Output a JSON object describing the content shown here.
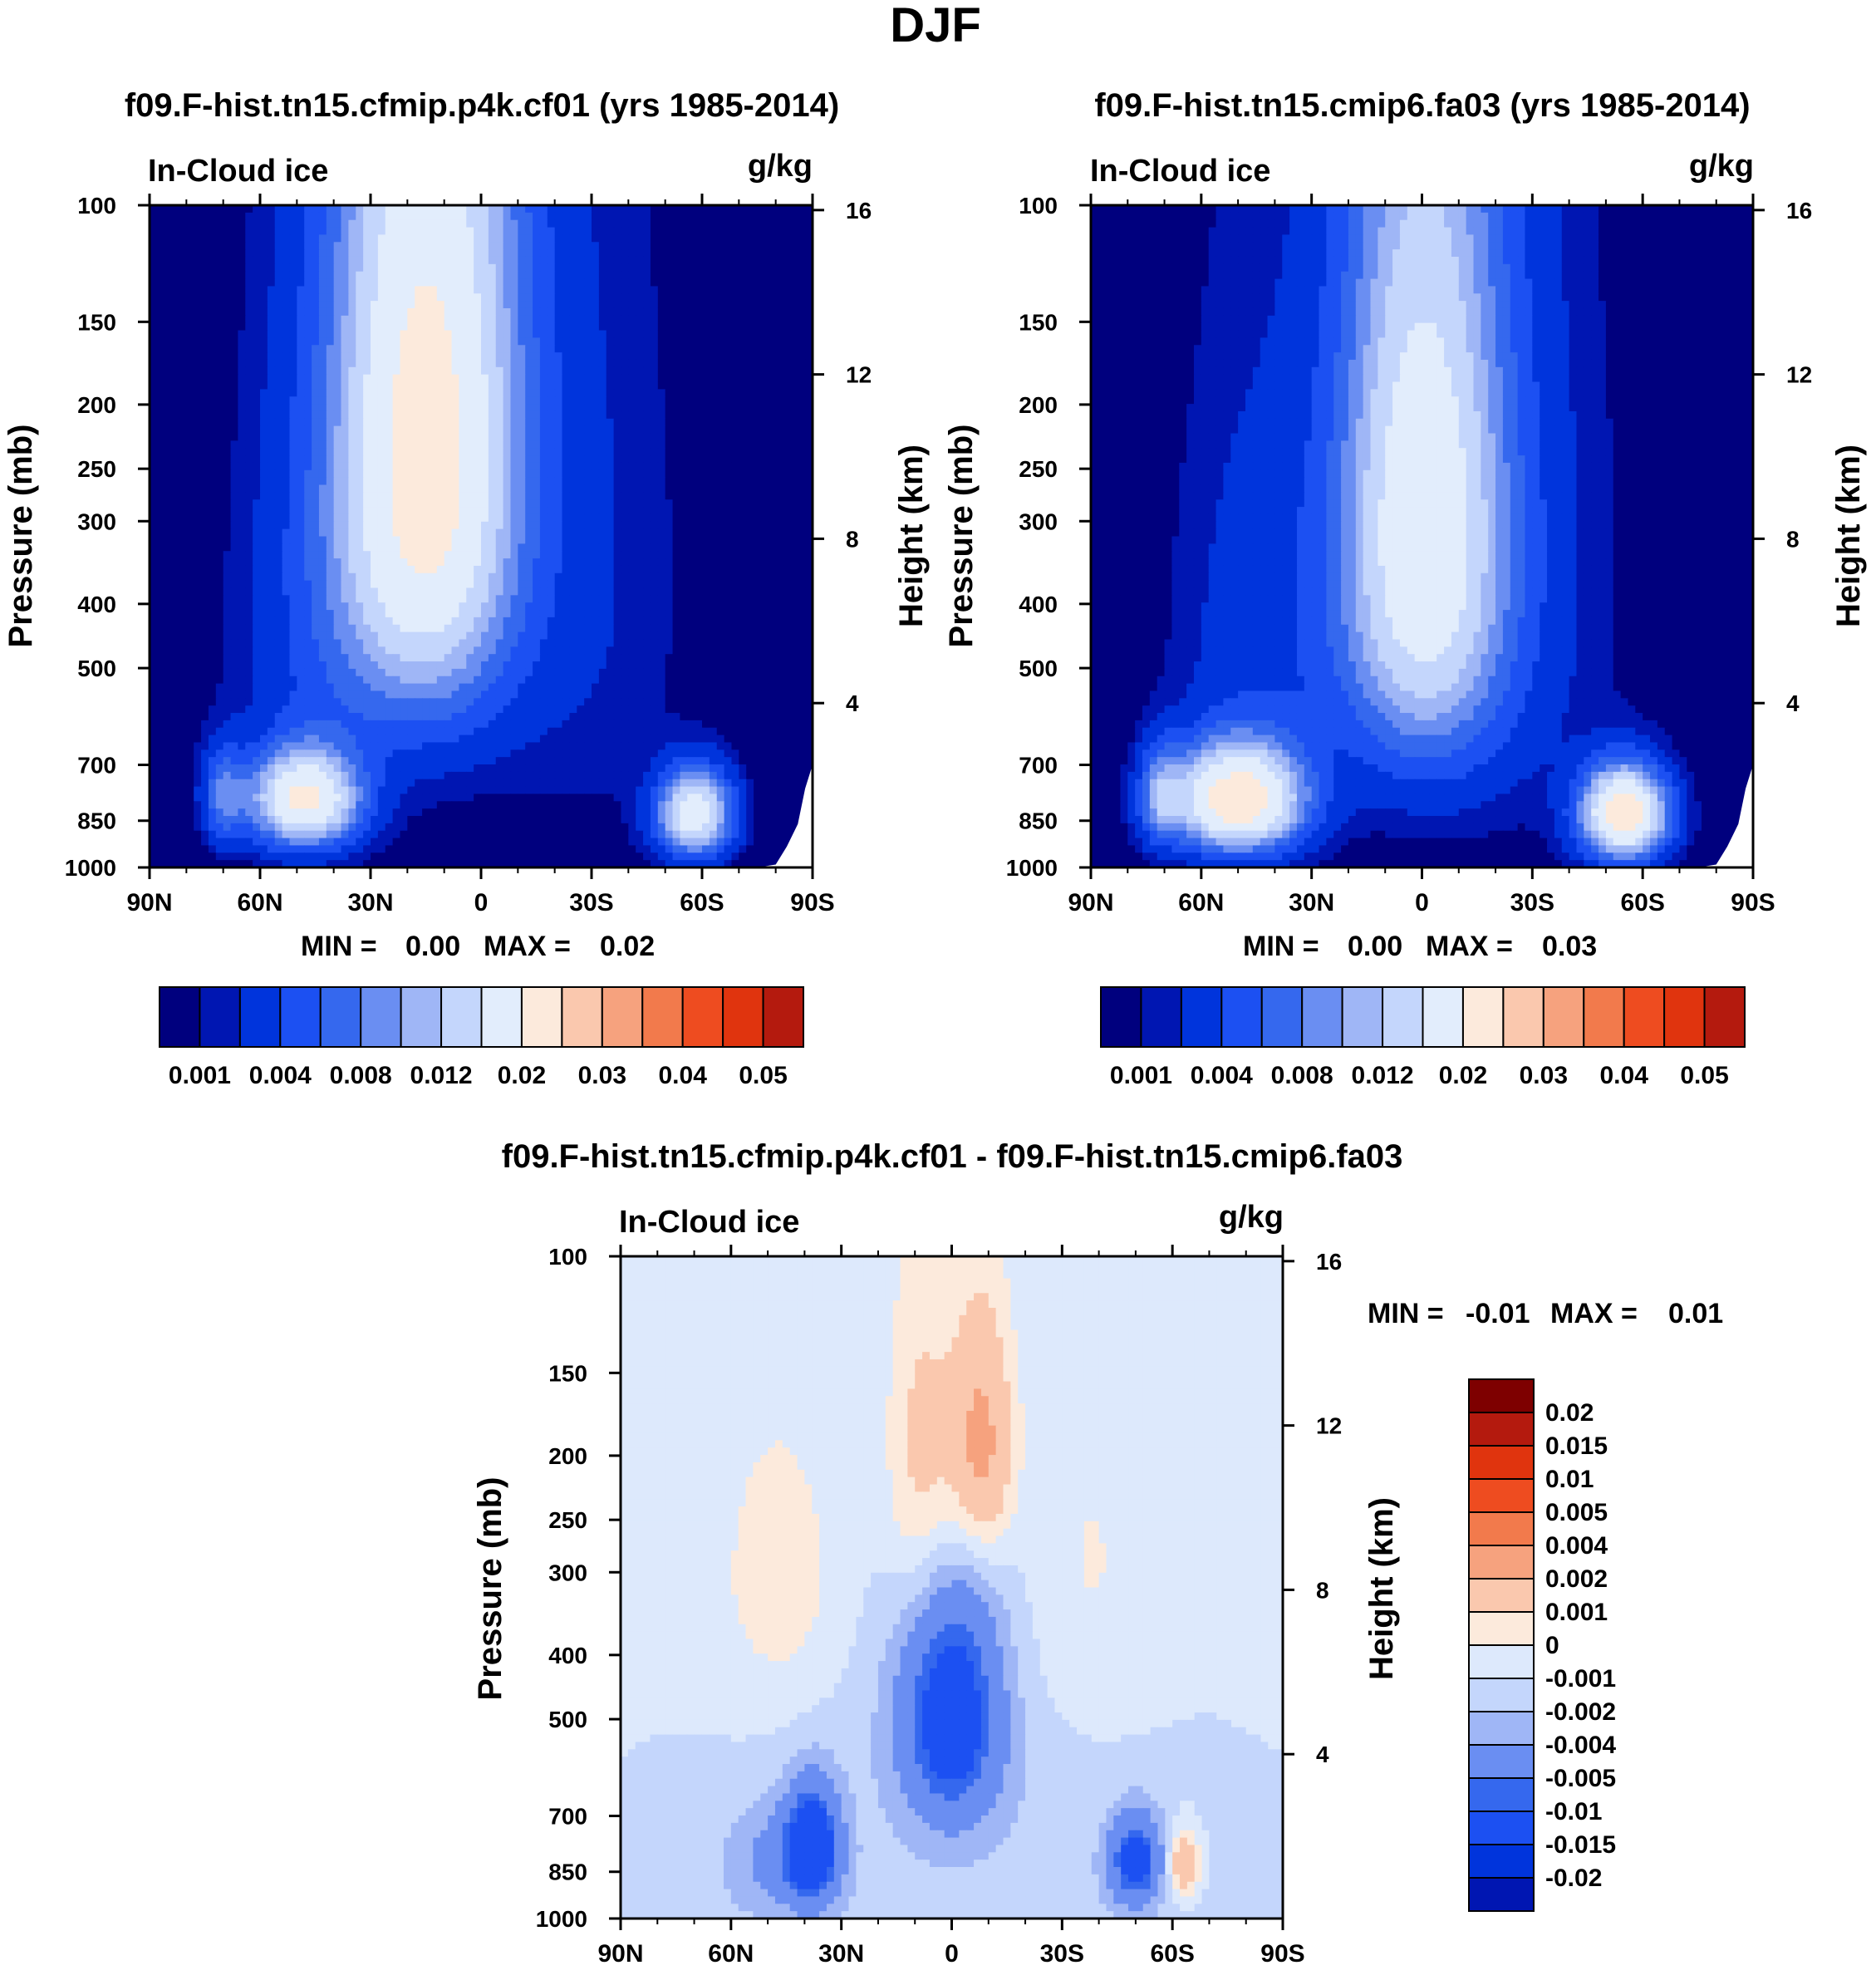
{
  "page": {
    "title": "DJF"
  },
  "colors": {
    "seq": [
      "#00007e",
      "#0016b2",
      "#0034dc",
      "#1c50f2",
      "#3568ee",
      "#6a8ef2",
      "#9fb6f6",
      "#c4d6fc",
      "#e2edfc",
      "#fceadc",
      "#fac8ae",
      "#f6a27e",
      "#f27a4c",
      "#ee4c20",
      "#e0340e",
      "#b41a0e",
      "#7e0000"
    ],
    "diff": [
      "#00007e",
      "#0016b2",
      "#0034dc",
      "#1c50f2",
      "#3568ee",
      "#6a8ef2",
      "#9fb6f6",
      "#c4d6fc",
      "#dde9fc",
      "#fceadc",
      "#fac8ae",
      "#f6a27e",
      "#f27a4c",
      "#ee4c20",
      "#e0340e",
      "#b41a0e",
      "#7e0000"
    ]
  },
  "chart_data": [
    {
      "id": "panel1",
      "type": "heatmap",
      "title": "f09.F-hist.tn15.cfmip.p4k.cf01 (yrs 1985-2014)",
      "variable": "In-Cloud ice",
      "units": "g/kg",
      "ylabel": "Pressure (mb)",
      "ylabel_right": "Height (km)",
      "x_ticks": [
        "90N",
        "60N",
        "30N",
        "0",
        "30S",
        "60S",
        "90S"
      ],
      "y_ticks": [
        "100",
        "150",
        "200",
        "250",
        "300",
        "400",
        "500",
        "700",
        "850",
        "1000"
      ],
      "y_ticks_right": [
        "16",
        "12",
        "8",
        "4"
      ],
      "stats": {
        "min_label": "MIN =",
        "min": "0.00",
        "max_label": "MAX =",
        "max": "0.02"
      },
      "colorbar_labels": [
        "0.001",
        "0.004",
        "0.008",
        "0.012",
        "0.02",
        "0.03",
        "0.04",
        "0.05"
      ],
      "features": [
        {
          "lat": 15,
          "p": 250,
          "peak": 0.022,
          "sx": 17,
          "sy": 210
        },
        {
          "lat": 48,
          "p": 790,
          "peak": 0.02,
          "sx": 10,
          "sy": 90
        },
        {
          "lat": 70,
          "p": 780,
          "peak": 0.007,
          "sx": 4,
          "sy": 90
        },
        {
          "lat": -58,
          "p": 830,
          "peak": 0.018,
          "sx": 7,
          "sy": 85
        },
        {
          "lat": 45,
          "p": 470,
          "peak": 0.003,
          "sx": 16,
          "sy": 280
        },
        {
          "lat": -28,
          "p": 380,
          "peak": 0.002,
          "sx": 20,
          "sy": 330
        },
        {
          "lat": 6,
          "p": 150,
          "peak": 0.001,
          "sx": 18,
          "sy": 120
        }
      ]
    },
    {
      "id": "panel2",
      "type": "heatmap",
      "title": "f09.F-hist.tn15.cmip6.fa03 (yrs 1985-2014)",
      "variable": "In-Cloud ice",
      "units": "g/kg",
      "ylabel": "Pressure (mb)",
      "ylabel_right": "Height (km)",
      "x_ticks": [
        "90N",
        "60N",
        "30N",
        "0",
        "30S",
        "60S",
        "90S"
      ],
      "y_ticks": [
        "100",
        "150",
        "200",
        "250",
        "300",
        "400",
        "500",
        "700",
        "850",
        "1000"
      ],
      "y_ticks_right": [
        "16",
        "12",
        "8",
        "4"
      ],
      "stats": {
        "min_label": "MIN =",
        "min": "0.00",
        "max_label": "MAX =",
        "max": "0.03"
      },
      "colorbar_labels": [
        "0.001",
        "0.004",
        "0.008",
        "0.012",
        "0.02",
        "0.03",
        "0.04",
        "0.05"
      ],
      "features": [
        {
          "lat": 0,
          "p": 330,
          "peak": 0.018,
          "sx": 16,
          "sy": 230
        },
        {
          "lat": 50,
          "p": 790,
          "peak": 0.023,
          "sx": 12,
          "sy": 100
        },
        {
          "lat": 71,
          "p": 780,
          "peak": 0.008,
          "sx": 4,
          "sy": 90
        },
        {
          "lat": -55,
          "p": 830,
          "peak": 0.024,
          "sx": 8,
          "sy": 90
        },
        {
          "lat": 45,
          "p": 470,
          "peak": 0.003,
          "sx": 16,
          "sy": 280
        },
        {
          "lat": -28,
          "p": 380,
          "peak": 0.002,
          "sx": 20,
          "sy": 330
        },
        {
          "lat": 0,
          "p": 170,
          "peak": 0.0012,
          "sx": 14,
          "sy": 120
        }
      ]
    },
    {
      "id": "panel3",
      "type": "heatmap",
      "title": "f09.F-hist.tn15.cfmip.p4k.cf01 - f09.F-hist.tn15.cmip6.fa03",
      "variable": "In-Cloud ice",
      "units": "g/kg",
      "ylabel": "Pressure (mb)",
      "ylabel_right": "Height (km)",
      "x_ticks": [
        "90N",
        "60N",
        "30N",
        "0",
        "30S",
        "60S",
        "90S"
      ],
      "y_ticks": [
        "100",
        "150",
        "200",
        "250",
        "300",
        "400",
        "500",
        "700",
        "850",
        "1000"
      ],
      "y_ticks_right": [
        "16",
        "12",
        "8",
        "4"
      ],
      "stats": {
        "min_label": "MIN =",
        "min": "-0.01",
        "max_label": "MAX =",
        "max": "0.01"
      },
      "colorbar_labels": [
        "0.02",
        "0.015",
        "0.01",
        "0.005",
        "0.004",
        "0.002",
        "0.001",
        "0",
        "-0.001",
        "-0.002",
        "-0.004",
        "-0.005",
        "-0.01",
        "-0.015",
        "-0.02"
      ],
      "features": [
        {
          "lat": -8,
          "p": 195,
          "peak": 0.005,
          "sx": 6,
          "sy": 60
        },
        {
          "lat": 8,
          "p": 210,
          "peak": 0.003,
          "sx": 7,
          "sy": 90
        },
        {
          "lat": 45,
          "p": 320,
          "peak": 0.0015,
          "sx": 14,
          "sy": 120
        },
        {
          "lat": -35,
          "p": 320,
          "peak": 0.0012,
          "sx": 14,
          "sy": 150
        },
        {
          "lat": 0,
          "p": 500,
          "peak": -0.006,
          "sx": 9,
          "sy": 140
        },
        {
          "lat": 38,
          "p": 780,
          "peak": -0.007,
          "sx": 5,
          "sy": 110
        },
        {
          "lat": 48,
          "p": 820,
          "peak": -0.002,
          "sx": 10,
          "sy": 110
        },
        {
          "lat": -50,
          "p": 820,
          "peak": -0.006,
          "sx": 5,
          "sy": 90
        },
        {
          "lat": -63,
          "p": 830,
          "peak": 0.004,
          "sx": 3,
          "sy": 70
        },
        {
          "lat": 0,
          "p": 800,
          "peak": -0.0006,
          "sx": 60,
          "sy": 400
        },
        {
          "lat": 0,
          "p": 380,
          "peak": -0.0009,
          "sx": 24,
          "sy": 220
        }
      ]
    }
  ]
}
